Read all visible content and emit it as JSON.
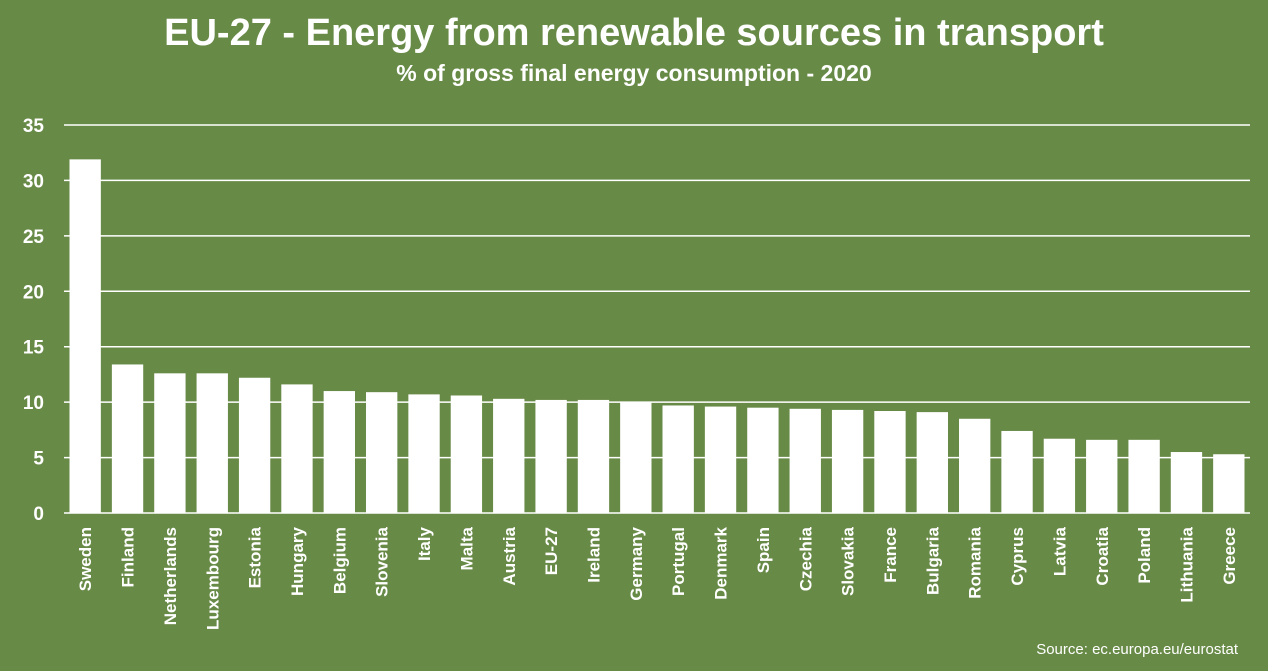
{
  "chart_data": {
    "type": "bar",
    "title": "EU-27 - Energy from renewable sources in transport",
    "subtitle": "% of gross final energy consumption - 2020",
    "source": "Source: ec.europa.eu/eurostat",
    "ylim": [
      0,
      35
    ],
    "yticks": [
      0,
      5,
      10,
      15,
      20,
      25,
      30,
      35
    ],
    "grid": true,
    "categories": [
      "Sweden",
      "Finland",
      "Netherlands",
      "Luxembourg",
      "Estonia",
      "Hungary",
      "Belgium",
      "Slovenia",
      "Italy",
      "Malta",
      "Austria",
      "EU-27",
      "Ireland",
      "Germany",
      "Portugal",
      "Denmark",
      "Spain",
      "Czechia",
      "Slovakia",
      "France",
      "Bulgaria",
      "Romania",
      "Cyprus",
      "Latvia",
      "Croatia",
      "Poland",
      "Lithuania",
      "Greece"
    ],
    "values": [
      31.9,
      13.4,
      12.6,
      12.6,
      12.2,
      11.6,
      11.0,
      10.9,
      10.7,
      10.6,
      10.3,
      10.2,
      10.2,
      10.0,
      9.7,
      9.6,
      9.5,
      9.4,
      9.3,
      9.2,
      9.1,
      8.5,
      7.4,
      6.7,
      6.6,
      6.6,
      5.5,
      5.3
    ],
    "colors": {
      "background": "#688a47",
      "bar": "#ffffff",
      "grid": "#ffffff",
      "text": "#ffffff"
    }
  }
}
